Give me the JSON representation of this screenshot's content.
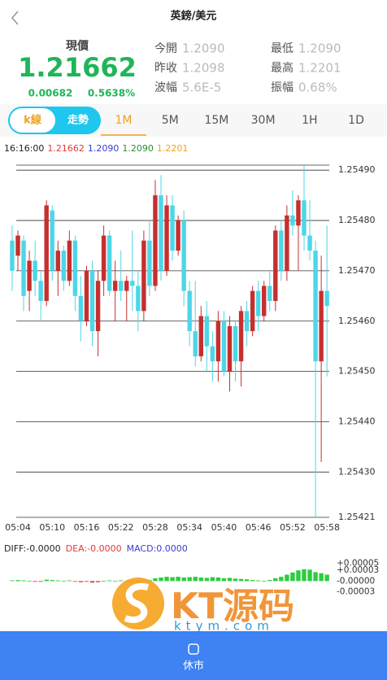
{
  "header": {
    "title": "英鎊/美元"
  },
  "quote": {
    "label": "現價",
    "price": "1.21662",
    "change": "0.00682",
    "change_pct": "0.5638%"
  },
  "stats": [
    {
      "label": "今開",
      "value": "1.2090"
    },
    {
      "label": "昨收",
      "value": "1.2098"
    },
    {
      "label": "波幅",
      "value": "5.6E-5"
    },
    {
      "label": "最低",
      "value": "1.2090"
    },
    {
      "label": "最高",
      "value": "1.2201"
    },
    {
      "label": "振幅",
      "value": "0.68%"
    }
  ],
  "tabs": {
    "toggle": [
      "k線",
      "走勢"
    ],
    "periods": [
      "1M",
      "5M",
      "15M",
      "30M",
      "1H",
      "1D"
    ]
  },
  "info": {
    "time": "16:16:00",
    "values": [
      "1.21662",
      "1.2090",
      "1.2090",
      "1.2201"
    ]
  },
  "kline": {
    "categories": [
      null,
      "05:04",
      null,
      null,
      null,
      null,
      null,
      "05:10",
      null,
      null,
      null,
      null,
      null,
      "05:16",
      null,
      null,
      null,
      null,
      null,
      "05:22",
      null,
      null,
      null,
      null,
      null,
      "05:28",
      null,
      null,
      null,
      null,
      null,
      "05:34",
      null,
      null,
      null,
      null,
      null,
      "05:40",
      null,
      null,
      null,
      null,
      null,
      "05:46",
      null,
      null,
      null,
      null,
      null,
      "05:52",
      null,
      null,
      null,
      null,
      null,
      "05:58"
    ],
    "ohlc": [
      [
        1.25476,
        1.25479,
        1.25466,
        1.2547
      ],
      [
        1.25473,
        1.25478,
        1.2547,
        1.25477
      ],
      [
        1.25476,
        1.25477,
        1.25462,
        1.25465
      ],
      [
        1.25466,
        1.25474,
        1.25462,
        1.25472
      ],
      [
        1.25472,
        1.25476,
        1.25465,
        1.25468
      ],
      [
        1.25468,
        1.2547,
        1.2546,
        1.25464
      ],
      [
        1.25464,
        1.25484,
        1.25463,
        1.25483
      ],
      [
        1.25482,
        1.25483,
        1.25468,
        1.2547
      ],
      [
        1.2547,
        1.25476,
        1.25465,
        1.25474
      ],
      [
        1.25474,
        1.25475,
        1.25466,
        1.25468
      ],
      [
        1.25468,
        1.25478,
        1.25467,
        1.25476
      ],
      [
        1.25476,
        1.25477,
        1.25462,
        1.25465
      ],
      [
        1.25465,
        1.25469,
        1.25456,
        1.2546
      ],
      [
        1.2546,
        1.25471,
        1.25459,
        1.2547
      ],
      [
        1.2547,
        1.25472,
        1.25455,
        1.25458
      ],
      [
        1.25458,
        1.2547,
        1.25453,
        1.25468
      ],
      [
        1.25468,
        1.25479,
        1.25465,
        1.25477
      ],
      [
        1.25477,
        1.25478,
        1.25465,
        1.25466
      ],
      [
        1.25466,
        1.25472,
        1.2546,
        1.25468
      ],
      [
        1.25468,
        1.25474,
        1.25464,
        1.25466
      ],
      [
        1.25466,
        1.25469,
        1.2546,
        1.25468
      ],
      [
        1.25468,
        1.25478,
        1.25462,
        1.25467
      ],
      [
        1.25467,
        1.2547,
        1.25458,
        1.25462
      ],
      [
        1.25462,
        1.25478,
        1.2546,
        1.25476
      ],
      [
        1.25476,
        1.2548,
        1.25465,
        1.25467
      ],
      [
        1.25467,
        1.25488,
        1.25466,
        1.25485
      ],
      [
        1.25485,
        1.25489,
        1.25468,
        1.2547
      ],
      [
        1.2547,
        1.25485,
        1.25469,
        1.25483
      ],
      [
        1.25483,
        1.25485,
        1.25472,
        1.25474
      ],
      [
        1.25474,
        1.25481,
        1.25473,
        1.2548
      ],
      [
        1.2548,
        1.25482,
        1.25463,
        1.25466
      ],
      [
        1.25466,
        1.25468,
        1.25455,
        1.25458
      ],
      [
        1.25458,
        1.25468,
        1.25451,
        1.25453
      ],
      [
        1.25453,
        1.25463,
        1.25452,
        1.25461
      ],
      [
        1.25461,
        1.25464,
        1.2545,
        1.25455
      ],
      [
        1.25455,
        1.25458,
        1.25448,
        1.25452
      ],
      [
        1.25452,
        1.25462,
        1.25448,
        1.2546
      ],
      [
        1.2546,
        1.25462,
        1.25449,
        1.2545
      ],
      [
        1.2545,
        1.25461,
        1.25446,
        1.25459
      ],
      [
        1.25459,
        1.2546,
        1.25448,
        1.25452
      ],
      [
        1.25452,
        1.25463,
        1.25447,
        1.25462
      ],
      [
        1.25462,
        1.25464,
        1.25455,
        1.25458
      ],
      [
        1.25458,
        1.25467,
        1.25457,
        1.25466
      ],
      [
        1.25466,
        1.25468,
        1.25458,
        1.25461
      ],
      [
        1.25461,
        1.25468,
        1.2546,
        1.25467
      ],
      [
        1.25467,
        1.2547,
        1.25462,
        1.25464
      ],
      [
        1.25464,
        1.25479,
        1.25462,
        1.25478
      ],
      [
        1.25478,
        1.2548,
        1.25468,
        1.2547
      ],
      [
        1.2547,
        1.25483,
        1.25468,
        1.25481
      ],
      [
        1.25481,
        1.25486,
        1.25477,
        1.25479
      ],
      [
        1.25479,
        1.25485,
        1.2547,
        1.25484
      ],
      [
        1.25484,
        1.25491,
        1.25474,
        1.25477
      ],
      [
        1.25477,
        1.25484,
        1.25472,
        1.25474
      ],
      [
        1.25474,
        1.25476,
        1.25421,
        1.25452
      ],
      [
        1.25452,
        1.25473,
        1.25432,
        1.25466
      ],
      [
        1.25466,
        1.25479,
        1.25449,
        1.25463
      ]
    ],
    "up_color": "#c62f2f",
    "down_color": "#4dd6e8",
    "ylim": [
      1.25421,
      1.25491
    ],
    "yticks": [
      {
        "value": 1.2549,
        "label": "1.25490"
      },
      {
        "value": 1.2548,
        "label": "1.25480"
      },
      {
        "value": 1.2547,
        "label": "1.25470"
      },
      {
        "value": 1.2546,
        "label": "1.25460"
      },
      {
        "value": 1.2545,
        "label": "1.25450"
      },
      {
        "value": 1.2544,
        "label": "1.25440"
      },
      {
        "value": 1.2543,
        "label": "1.25430"
      },
      1.25421
    ]
  },
  "macd": {
    "legend": [
      "DIFF:-0.0000",
      "DEA:-0.0000",
      "MACD:0.0000"
    ],
    "hist": [
      2e-06,
      3e-06,
      2e-06,
      1e-06,
      -1e-06,
      -2e-06,
      4e-06,
      3e-06,
      2e-06,
      1e-06,
      2e-06,
      -1e-06,
      -3e-06,
      -2e-06,
      -4e-06,
      -3e-06,
      1e-06,
      2e-06,
      1e-06,
      2e-06,
      -1e-06,
      -2e-06,
      -3e-06,
      1e-06,
      3e-06,
      8e-06,
      1e-05,
      1.2e-05,
      1.1e-05,
      1.2e-05,
      1e-05,
      1.1e-05,
      1.2e-05,
      1e-05,
      9e-06,
      1.1e-05,
      1e-05,
      8e-06,
      9e-06,
      7e-06,
      6e-06,
      5e-06,
      3e-06,
      2e-06,
      1e-06,
      3e-06,
      8e-06,
      1.2e-05,
      1.8e-05,
      2.4e-05,
      3e-05,
      3.3e-05,
      3.2e-05,
      2.5e-05,
      2.2e-05,
      1.8e-05
    ],
    "up_color": "#2ecc40",
    "down_color": "#d93a3a",
    "ylim": [
      -4e-05,
      6e-05
    ],
    "yticks": [
      {
        "value": 5e-05,
        "label": "+0.00005"
      },
      {
        "value": 3e-05,
        "label": "+0.00003"
      },
      {
        "value": 0,
        "label": "-0.00000"
      },
      {
        "value": -3e-05,
        "label": "-0.00003"
      }
    ]
  },
  "footer": {
    "status": "休市"
  },
  "watermark": {
    "brand": "KT源码",
    "url": "ktym.com"
  }
}
